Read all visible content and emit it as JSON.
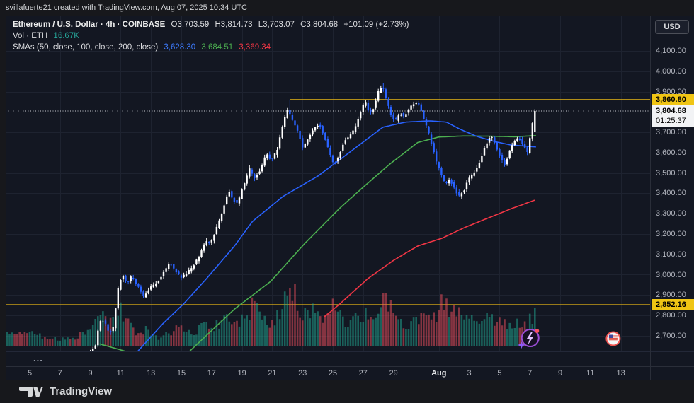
{
  "attribution": "svillafuerte21 created with TradingView.com, Aug 07, 2025 10:34 UTC",
  "legend": {
    "symbol_line": "Ethereum / U.S. Dollar · 4h · COINBASE",
    "ohlc": {
      "o": "O3,703.59",
      "h": "H3,814.73",
      "l": "L3,703.07",
      "c": "C3,804.68",
      "change": "+101.09 (+2.73%)"
    },
    "volume_label": "Vol · ETH",
    "volume_value": "16.67K",
    "smas_label": "SMAs (50, close, 100, close, 200, close)",
    "sma50": "3,628.30",
    "sma100": "3,684.51",
    "sma200": "3,369.34"
  },
  "price_axis": {
    "currency": "USD",
    "ticks": [
      4100,
      4000,
      3900,
      3800,
      3700,
      3600,
      3500,
      3400,
      3300,
      3200,
      3100,
      3000,
      2900,
      2800,
      2700
    ],
    "badges": {
      "level_high": "3,860.80",
      "last_price": "3,804.68",
      "countdown": "01:25:37",
      "level_low": "2,852.16"
    }
  },
  "time_axis": {
    "labels": [
      {
        "text": "5",
        "day": 5
      },
      {
        "text": "7",
        "day": 7
      },
      {
        "text": "9",
        "day": 9
      },
      {
        "text": "11",
        "day": 11
      },
      {
        "text": "13",
        "day": 13
      },
      {
        "text": "15",
        "day": 15
      },
      {
        "text": "17",
        "day": 17
      },
      {
        "text": "19",
        "day": 19
      },
      {
        "text": "21",
        "day": 21
      },
      {
        "text": "23",
        "day": 23
      },
      {
        "text": "25",
        "day": 25
      },
      {
        "text": "27",
        "day": 27
      },
      {
        "text": "29",
        "day": 29
      },
      {
        "text": "Aug",
        "day": 32,
        "bold": true
      },
      {
        "text": "3",
        "day": 34
      },
      {
        "text": "5",
        "day": 36
      },
      {
        "text": "7",
        "day": 38
      },
      {
        "text": "9",
        "day": 40
      },
      {
        "text": "11",
        "day": 42
      },
      {
        "text": "13",
        "day": 44
      }
    ]
  },
  "pane_more": "...",
  "footer": {
    "brand": "TradingView"
  },
  "colors": {
    "page_background": "#17181c",
    "chart_background": "#131722",
    "grid": "#1e2330",
    "axis_border": "#2a2e39",
    "axis_text": "#b2b5be",
    "candle_up": "#ffffff",
    "candle_down": "#2962ff",
    "volume_up": "rgba(34,171,148,0.5)",
    "volume_down": "rgba(247,82,95,0.5)",
    "sma50": "#2962ff",
    "sma100": "#4caf50",
    "sma200": "#f23645",
    "level_yellow": "#e8b514",
    "badge_yellow": "#f0c514",
    "last_price_dotted": "#c8cbd1"
  },
  "chart_data": {
    "type": "candlestick",
    "symbol": "Ethereum / U.S. Dollar",
    "exchange": "COINBASE",
    "interval": "4h",
    "currency": "USD",
    "candles_per_day": 6,
    "start_day": 3.4167,
    "end_day": 38.42,
    "num_candles": 210,
    "axis_price_ticks": [
      2700,
      4100
    ],
    "last_candle": {
      "open": 3703.59,
      "high": 3814.73,
      "low": 3703.07,
      "close": 3804.68,
      "change": 101.09,
      "change_pct": 2.73,
      "volume": "16.67K",
      "countdown": "01:25:37"
    },
    "sma_current": {
      "sma50": 3628.3,
      "sma100": 3684.51,
      "sma200": 3369.34
    },
    "levels": [
      {
        "price": 3860.8,
        "style": "solid-ray",
        "starts_day": 22.17
      },
      {
        "price": 2852.16,
        "style": "solid",
        "starts_day": null
      },
      {
        "price": 3804.68,
        "style": "dotted-last-price",
        "starts_day": null
      }
    ],
    "forced_highs": [
      [
        22.17,
        3860.8
      ],
      [
        28.33,
        3941
      ]
    ],
    "price_path": [
      [
        3.42,
        2565
      ],
      [
        4.0,
        2590
      ],
      [
        4.5,
        2550
      ],
      [
        5.0,
        2505
      ],
      [
        5.4,
        2540
      ],
      [
        6.0,
        2575
      ],
      [
        6.5,
        2545
      ],
      [
        7.0,
        2560
      ],
      [
        7.5,
        2600
      ],
      [
        8.0,
        2605
      ],
      [
        8.5,
        2570
      ],
      [
        9.0,
        2615
      ],
      [
        9.4,
        2650
      ],
      [
        9.7,
        2768
      ],
      [
        10.0,
        2775
      ],
      [
        10.3,
        2712
      ],
      [
        10.6,
        2740
      ],
      [
        10.95,
        2950
      ],
      [
        11.2,
        3000
      ],
      [
        11.5,
        2958
      ],
      [
        11.8,
        2992
      ],
      [
        12.2,
        2945
      ],
      [
        12.6,
        2890
      ],
      [
        13.0,
        2935
      ],
      [
        13.5,
        2962
      ],
      [
        13.9,
        3008
      ],
      [
        14.3,
        3058
      ],
      [
        14.7,
        3020
      ],
      [
        15.1,
        2985
      ],
      [
        15.5,
        3012
      ],
      [
        15.9,
        3048
      ],
      [
        16.3,
        3095
      ],
      [
        16.7,
        3168
      ],
      [
        17.0,
        3152
      ],
      [
        17.4,
        3228
      ],
      [
        17.8,
        3312
      ],
      [
        18.2,
        3418
      ],
      [
        18.5,
        3368
      ],
      [
        18.8,
        3348
      ],
      [
        19.2,
        3442
      ],
      [
        19.6,
        3522
      ],
      [
        19.9,
        3475
      ],
      [
        20.3,
        3512
      ],
      [
        20.7,
        3598
      ],
      [
        21.0,
        3562
      ],
      [
        21.4,
        3612
      ],
      [
        21.8,
        3748
      ],
      [
        22.1,
        3812
      ],
      [
        22.4,
        3762
      ],
      [
        22.8,
        3702
      ],
      [
        23.1,
        3622
      ],
      [
        23.4,
        3662
      ],
      [
        23.8,
        3716
      ],
      [
        24.2,
        3740
      ],
      [
        24.5,
        3682
      ],
      [
        24.9,
        3592
      ],
      [
        25.15,
        3540
      ],
      [
        25.5,
        3588
      ],
      [
        25.8,
        3652
      ],
      [
        26.2,
        3682
      ],
      [
        26.55,
        3722
      ],
      [
        26.9,
        3798
      ],
      [
        27.2,
        3858
      ],
      [
        27.5,
        3792
      ],
      [
        27.8,
        3822
      ],
      [
        28.1,
        3902
      ],
      [
        28.35,
        3932
      ],
      [
        28.6,
        3862
      ],
      [
        28.9,
        3792
      ],
      [
        29.2,
        3752
      ],
      [
        29.5,
        3798
      ],
      [
        29.8,
        3775
      ],
      [
        30.1,
        3818
      ],
      [
        30.45,
        3838
      ],
      [
        30.7,
        3852
      ],
      [
        31.0,
        3788
      ],
      [
        31.3,
        3722
      ],
      [
        31.6,
        3642
      ],
      [
        31.9,
        3560
      ],
      [
        32.2,
        3498
      ],
      [
        32.5,
        3440
      ],
      [
        32.8,
        3468
      ],
      [
        33.1,
        3422
      ],
      [
        33.4,
        3386
      ],
      [
        33.7,
        3408
      ],
      [
        34.0,
        3465
      ],
      [
        34.4,
        3502
      ],
      [
        34.8,
        3558
      ],
      [
        35.1,
        3625
      ],
      [
        35.5,
        3688
      ],
      [
        35.8,
        3642
      ],
      [
        36.1,
        3582
      ],
      [
        36.45,
        3540
      ],
      [
        36.7,
        3598
      ],
      [
        37.0,
        3652
      ],
      [
        37.3,
        3678
      ],
      [
        37.6,
        3642
      ],
      [
        37.95,
        3598
      ],
      [
        38.15,
        3704
      ],
      [
        38.42,
        3805
      ]
    ],
    "volume_profile": [
      [
        3.42,
        0.18
      ],
      [
        5.0,
        0.22
      ],
      [
        6.0,
        0.12
      ],
      [
        7.0,
        0.1
      ],
      [
        8.0,
        0.14
      ],
      [
        9.0,
        0.3
      ],
      [
        9.7,
        0.45
      ],
      [
        10.3,
        0.35
      ],
      [
        10.95,
        0.55
      ],
      [
        11.3,
        0.45
      ],
      [
        12.0,
        0.2
      ],
      [
        12.6,
        0.25
      ],
      [
        13.3,
        0.12
      ],
      [
        14.0,
        0.18
      ],
      [
        14.5,
        0.25
      ],
      [
        15.1,
        0.3
      ],
      [
        15.9,
        0.22
      ],
      [
        16.4,
        0.38
      ],
      [
        17.0,
        0.28
      ],
      [
        17.8,
        0.42
      ],
      [
        18.2,
        0.5
      ],
      [
        18.6,
        0.35
      ],
      [
        19.2,
        0.45
      ],
      [
        19.9,
        0.72
      ],
      [
        20.5,
        0.45
      ],
      [
        21.0,
        0.35
      ],
      [
        21.8,
        0.78
      ],
      [
        22.2,
        1.0
      ],
      [
        22.6,
        0.55
      ],
      [
        23.1,
        0.5
      ],
      [
        23.6,
        0.58
      ],
      [
        24.2,
        0.42
      ],
      [
        24.6,
        0.65
      ],
      [
        25.15,
        0.55
      ],
      [
        25.8,
        0.38
      ],
      [
        26.5,
        0.4
      ],
      [
        27.2,
        0.48
      ],
      [
        28.1,
        0.6
      ],
      [
        28.4,
        0.68
      ],
      [
        28.9,
        0.5
      ],
      [
        29.5,
        0.38
      ],
      [
        30.1,
        0.32
      ],
      [
        30.7,
        0.42
      ],
      [
        31.3,
        0.38
      ],
      [
        31.9,
        0.52
      ],
      [
        32.2,
        0.72
      ],
      [
        32.5,
        0.65
      ],
      [
        33.1,
        0.48
      ],
      [
        33.4,
        0.58
      ],
      [
        34.0,
        0.42
      ],
      [
        34.8,
        0.38
      ],
      [
        35.5,
        0.42
      ],
      [
        36.1,
        0.32
      ],
      [
        36.45,
        0.38
      ],
      [
        37.0,
        0.35
      ],
      [
        37.6,
        0.3
      ],
      [
        38.0,
        0.42
      ],
      [
        38.42,
        0.5
      ]
    ],
    "sma50_path": [
      [
        12.0,
        2613
      ],
      [
        13.8,
        2760
      ],
      [
        15.2,
        2860
      ],
      [
        16.6,
        2975
      ],
      [
        18.5,
        3140
      ],
      [
        19.7,
        3262
      ],
      [
        21.7,
        3384
      ],
      [
        24.0,
        3484
      ],
      [
        25.9,
        3590
      ],
      [
        28.3,
        3725
      ],
      [
        29.8,
        3750
      ],
      [
        31.4,
        3756
      ],
      [
        32.5,
        3750
      ],
      [
        33.4,
        3715
      ],
      [
        34.5,
        3680
      ],
      [
        35.6,
        3656
      ],
      [
        36.7,
        3638
      ],
      [
        38.42,
        3628
      ]
    ],
    "sma100_path": [
      [
        9.6,
        2660
      ],
      [
        12.4,
        2600
      ],
      [
        15.0,
        2585
      ],
      [
        18.5,
        2830
      ],
      [
        20.9,
        2967
      ],
      [
        23.1,
        3150
      ],
      [
        25.5,
        3330
      ],
      [
        27.0,
        3430
      ],
      [
        28.7,
        3540
      ],
      [
        30.6,
        3650
      ],
      [
        32.0,
        3677
      ],
      [
        33.7,
        3682
      ],
      [
        35.3,
        3681
      ],
      [
        37.0,
        3678
      ],
      [
        38.42,
        3684
      ]
    ],
    "sma200_path": [
      [
        24.4,
        2790
      ],
      [
        25.4,
        2852
      ],
      [
        27.3,
        2980
      ],
      [
        29.0,
        3070
      ],
      [
        30.6,
        3141
      ],
      [
        32.2,
        3179
      ],
      [
        33.7,
        3232
      ],
      [
        35.3,
        3280
      ],
      [
        36.8,
        3325
      ],
      [
        38.42,
        3369
      ]
    ],
    "event_markers": [
      {
        "day": 38.4,
        "kind": "crypto-event"
      },
      {
        "day": 43.5,
        "kind": "us-economic-event"
      }
    ]
  }
}
